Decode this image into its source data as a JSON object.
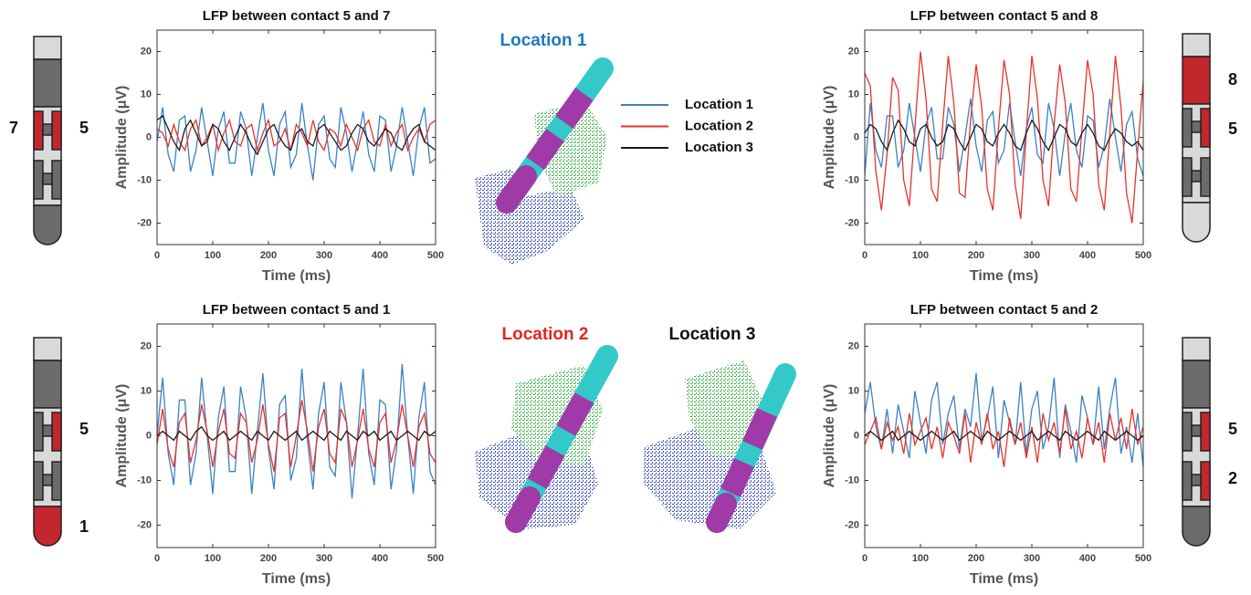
{
  "chart_data": [
    {
      "type": "line",
      "title": "LFP between contact 5 and 7",
      "xlabel": "Time (ms)",
      "ylabel": "Amplitude (μV)",
      "legend": true,
      "xlim": [
        0,
        500
      ],
      "ylim": [
        -25,
        25
      ],
      "xticks": [
        0,
        100,
        200,
        300,
        400,
        500
      ],
      "yticks": [
        -20,
        -10,
        0,
        10,
        20
      ],
      "x": [
        0,
        10,
        20,
        30,
        40,
        50,
        60,
        70,
        80,
        90,
        100,
        110,
        120,
        130,
        140,
        150,
        160,
        170,
        180,
        190,
        200,
        210,
        220,
        230,
        240,
        250,
        260,
        270,
        280,
        290,
        300,
        310,
        320,
        330,
        340,
        350,
        360,
        370,
        380,
        390,
        400,
        410,
        420,
        430,
        440,
        450,
        460,
        470,
        480,
        490,
        500
      ],
      "series": [
        {
          "name": "Location 1",
          "color": "#3a82c4",
          "values": [
            -1,
            7,
            -4,
            -8,
            4,
            5,
            -8,
            -3,
            7,
            -1,
            -9,
            2,
            6,
            -6,
            -6,
            6,
            2,
            -9,
            0,
            8,
            -3,
            -9,
            3,
            6,
            -7,
            -4,
            8,
            -2,
            -10,
            3,
            5,
            -5,
            -7,
            7,
            1,
            -8,
            -1,
            6,
            -4,
            -8,
            5,
            4,
            -8,
            -2,
            7,
            -1,
            -9,
            2,
            7,
            -6,
            -5
          ]
        },
        {
          "name": "Location 2",
          "color": "#e8322b",
          "values": [
            2,
            1,
            -2,
            3,
            -1,
            -3,
            2,
            4,
            -2,
            0,
            3,
            -3,
            1,
            4,
            -1,
            -2,
            2,
            3,
            -3,
            1,
            4,
            -2,
            -1,
            2,
            -3,
            3,
            1,
            -2,
            4,
            -1,
            -3,
            2,
            1,
            -2,
            3,
            0,
            -3,
            2,
            4,
            -1,
            -2,
            3,
            -2,
            1,
            3,
            -3,
            0,
            2,
            -1,
            3,
            4
          ]
        },
        {
          "name": "Location 3",
          "color": "#1a1a1a",
          "values": [
            4,
            5,
            2,
            -1,
            -3,
            2,
            4,
            1,
            -2,
            -1,
            3,
            2,
            -1,
            -3,
            0,
            3,
            1,
            -2,
            -4,
            -1,
            2,
            3,
            0,
            -2,
            -3,
            1,
            2,
            -1,
            -2,
            2,
            3,
            1,
            -1,
            -3,
            -2,
            1,
            3,
            2,
            -1,
            -2,
            0,
            2,
            1,
            -2,
            -3,
            0,
            2,
            3,
            -1,
            -2,
            -3
          ]
        }
      ]
    },
    {
      "type": "line",
      "title": "LFP between contact 5 and 8",
      "xlabel": "Time (ms)",
      "ylabel": "Amplitude (μV)",
      "xlim": [
        0,
        500
      ],
      "ylim": [
        -25,
        25
      ],
      "xticks": [
        0,
        100,
        200,
        300,
        400,
        500
      ],
      "yticks": [
        -20,
        -10,
        0,
        10,
        20
      ],
      "x": [
        0,
        10,
        20,
        30,
        40,
        50,
        60,
        70,
        80,
        90,
        100,
        110,
        120,
        130,
        140,
        150,
        160,
        170,
        180,
        190,
        200,
        210,
        220,
        230,
        240,
        250,
        260,
        270,
        280,
        290,
        300,
        310,
        320,
        330,
        340,
        350,
        360,
        370,
        380,
        390,
        400,
        410,
        420,
        430,
        440,
        450,
        460,
        470,
        480,
        490,
        500
      ],
      "series": [
        {
          "name": "Location 1",
          "color": "#3a82c4",
          "values": [
            -9,
            8,
            -3,
            -7,
            5,
            5,
            -7,
            -3,
            8,
            0,
            -8,
            3,
            7,
            -5,
            -5,
            7,
            3,
            -8,
            0,
            9,
            -2,
            -8,
            4,
            6,
            -6,
            -3,
            8,
            -1,
            -9,
            2,
            7,
            -4,
            -6,
            8,
            2,
            -9,
            1,
            8,
            -3,
            -7,
            5,
            4,
            -7,
            -2,
            9,
            0,
            -8,
            3,
            6,
            -5,
            -9
          ]
        },
        {
          "name": "Location 2",
          "color": "#e8322b",
          "values": [
            15,
            12,
            -8,
            -17,
            -4,
            14,
            11,
            -10,
            -16,
            2,
            20,
            9,
            -12,
            -15,
            3,
            19,
            8,
            -13,
            -14,
            4,
            17,
            7,
            -12,
            -17,
            2,
            18,
            10,
            -11,
            -19,
            1,
            19,
            9,
            -10,
            -16,
            3,
            17,
            8,
            -12,
            -15,
            2,
            18,
            10,
            -11,
            -17,
            1,
            19,
            7,
            -13,
            -20,
            -3,
            13
          ]
        },
        {
          "name": "Location 3",
          "color": "#1a1a1a",
          "values": [
            1,
            3,
            2,
            -1,
            -3,
            1,
            4,
            2,
            -1,
            -2,
            2,
            3,
            0,
            -2,
            -1,
            3,
            2,
            -1,
            -3,
            0,
            3,
            2,
            -1,
            -2,
            1,
            3,
            1,
            -2,
            -3,
            1,
            4,
            2,
            -1,
            -3,
            0,
            3,
            2,
            -1,
            -2,
            1,
            3,
            1,
            -2,
            -3,
            0,
            2,
            1,
            -1,
            -2,
            -1,
            -3
          ]
        }
      ]
    },
    {
      "type": "line",
      "title": "LFP between contact 5 and 1",
      "xlabel": "Time (ms)",
      "ylabel": "Amplitude (μV)",
      "xlim": [
        0,
        500
      ],
      "ylim": [
        -25,
        25
      ],
      "xticks": [
        0,
        100,
        200,
        300,
        400,
        500
      ],
      "yticks": [
        -20,
        -10,
        0,
        10,
        20
      ],
      "x": [
        0,
        10,
        20,
        30,
        40,
        50,
        60,
        70,
        80,
        90,
        100,
        110,
        120,
        130,
        140,
        150,
        160,
        170,
        180,
        190,
        200,
        210,
        220,
        230,
        240,
        250,
        260,
        270,
        280,
        290,
        300,
        310,
        320,
        330,
        340,
        350,
        360,
        370,
        380,
        390,
        400,
        410,
        420,
        430,
        440,
        450,
        460,
        470,
        480,
        490,
        500
      ],
      "series": [
        {
          "name": "Location 1",
          "color": "#3a82c4",
          "values": [
            0,
            13,
            -4,
            -11,
            8,
            8,
            -11,
            -4,
            13,
            0,
            -13,
            4,
            11,
            -8,
            -8,
            11,
            4,
            -13,
            1,
            14,
            -3,
            -12,
            7,
            9,
            -10,
            -5,
            15,
            -1,
            -12,
            5,
            12,
            -7,
            -9,
            12,
            3,
            -14,
            0,
            15,
            -4,
            -11,
            8,
            7,
            -12,
            -3,
            16,
            0,
            -13,
            4,
            12,
            -8,
            -11
          ]
        },
        {
          "name": "Location 2",
          "color": "#e8322b",
          "values": [
            -2,
            6,
            -3,
            -7,
            3,
            5,
            -6,
            -1,
            7,
            1,
            -7,
            1,
            6,
            -4,
            -5,
            5,
            3,
            -6,
            -1,
            7,
            -2,
            -8,
            4,
            5,
            -7,
            0,
            8,
            1,
            -8,
            2,
            6,
            -4,
            -6,
            6,
            3,
            -7,
            -1,
            6,
            -3,
            -7,
            3,
            5,
            -6,
            -1,
            7,
            0,
            -7,
            2,
            5,
            -4,
            -6
          ]
        },
        {
          "name": "Location 3",
          "color": "#1a1a1a",
          "values": [
            0,
            1,
            0,
            -1,
            1,
            0,
            -1,
            1,
            2,
            0,
            -1,
            0,
            1,
            -1,
            0,
            1,
            0,
            -1,
            1,
            0,
            -1,
            1,
            0,
            -1,
            0,
            1,
            -1,
            0,
            1,
            0,
            -1,
            1,
            0,
            -1,
            1,
            0,
            -1,
            1,
            0,
            1,
            -1,
            0,
            1,
            -1,
            0,
            1,
            0,
            -1,
            1,
            0,
            1
          ]
        }
      ]
    },
    {
      "type": "line",
      "title": "LFP between contact 5 and 2",
      "xlabel": "Time (ms)",
      "ylabel": "Amplitude (μV)",
      "xlim": [
        0,
        500
      ],
      "ylim": [
        -25,
        25
      ],
      "xticks": [
        0,
        100,
        200,
        300,
        400,
        500
      ],
      "yticks": [
        -20,
        -10,
        0,
        10,
        20
      ],
      "x": [
        0,
        10,
        20,
        30,
        40,
        50,
        60,
        70,
        80,
        90,
        100,
        110,
        120,
        130,
        140,
        150,
        160,
        170,
        180,
        190,
        200,
        210,
        220,
        230,
        240,
        250,
        260,
        270,
        280,
        290,
        300,
        310,
        320,
        330,
        340,
        350,
        360,
        370,
        380,
        390,
        400,
        410,
        420,
        430,
        440,
        450,
        460,
        470,
        480,
        490,
        500
      ],
      "series": [
        {
          "name": "Location 1",
          "color": "#3a82c4",
          "values": [
            5,
            12,
            2,
            -3,
            6,
            -4,
            7,
            1,
            -5,
            10,
            3,
            -4,
            8,
            12,
            -2,
            5,
            9,
            -3,
            6,
            2,
            14,
            -1,
            4,
            11,
            -5,
            8,
            3,
            -2,
            12,
            -4,
            6,
            10,
            -3,
            2,
            13,
            -5,
            7,
            1,
            -6,
            9,
            4,
            -2,
            11,
            -3,
            6,
            13,
            -4,
            2,
            -6,
            5,
            -7
          ]
        },
        {
          "name": "Location 2",
          "color": "#e8322b",
          "values": [
            -2,
            1,
            4,
            -3,
            3,
            -1,
            2,
            -4,
            5,
            -2,
            1,
            4,
            -3,
            2,
            -5,
            3,
            0,
            -4,
            5,
            -6,
            3,
            -2,
            5,
            -3,
            1,
            -7,
            4,
            -2,
            3,
            -5,
            2,
            -6,
            5,
            -1,
            3,
            -4,
            6,
            -3,
            1,
            -5,
            4,
            -2,
            3,
            -6,
            5,
            -1,
            4,
            -3,
            6,
            -2,
            2
          ]
        },
        {
          "name": "Location 3",
          "color": "#1a1a1a",
          "values": [
            0,
            1,
            0,
            -1,
            0,
            1,
            -1,
            0,
            1,
            0,
            -1,
            0,
            1,
            0,
            -1,
            0,
            1,
            -1,
            0,
            1,
            0,
            -1,
            1,
            0,
            -1,
            0,
            1,
            0,
            -1,
            0,
            1,
            -1,
            0,
            1,
            0,
            -1,
            1,
            0,
            -1,
            0,
            1,
            0,
            -1,
            1,
            0,
            -1,
            0,
            1,
            0,
            -1,
            0
          ]
        }
      ]
    }
  ],
  "locations": [
    "Location 1",
    "Location 2",
    "Location 3"
  ],
  "electrodes": [
    {
      "labels": [
        "7",
        "5"
      ]
    },
    {
      "labels": [
        "8",
        "5"
      ]
    },
    {
      "labels": [
        "5",
        "1"
      ]
    },
    {
      "labels": [
        "5",
        "2"
      ]
    }
  ]
}
